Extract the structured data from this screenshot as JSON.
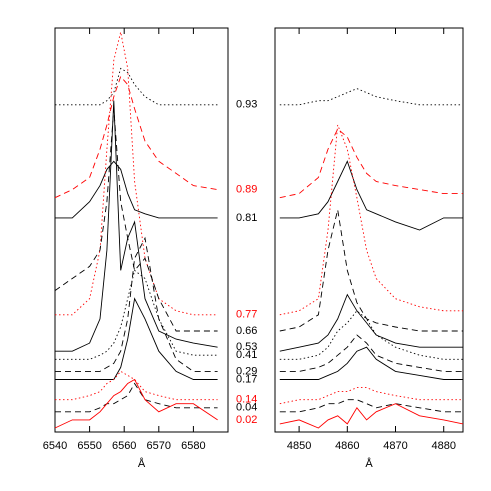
{
  "chart_data": [
    {
      "type": "line",
      "xlabel": "Å",
      "xlim": [
        6540,
        6590
      ],
      "xticks": [
        6540,
        6550,
        6560,
        6570,
        6580
      ],
      "ylim": [
        0,
        100
      ],
      "x": [
        6540,
        6545,
        6550,
        6553,
        6555,
        6557,
        6559,
        6561,
        6563,
        6566,
        6570,
        6575,
        6580,
        6587
      ],
      "series": [
        {
          "name": "0.93",
          "color": "#000000",
          "dash": "dotted",
          "values": [
            81,
            81,
            81,
            81,
            82,
            84,
            90,
            89,
            86,
            83,
            81,
            81,
            81,
            81
          ]
        },
        {
          "name": "0.89",
          "color": "#ff0000",
          "dash": "dashed",
          "values": [
            58,
            60,
            63,
            70,
            76,
            83,
            88,
            86,
            80,
            72,
            67,
            64,
            61,
            60
          ]
        },
        {
          "name": "0.81",
          "color": "#000000",
          "dash": "solid",
          "values": [
            53,
            53,
            57,
            61,
            65,
            67,
            65,
            59,
            55,
            54,
            53,
            53,
            53,
            53
          ]
        },
        {
          "name": "0.77",
          "color": "#ff0000",
          "dash": "dotted",
          "values": [
            29,
            29,
            33,
            45,
            70,
            92,
            99,
            90,
            62,
            43,
            33,
            30,
            29,
            29
          ]
        },
        {
          "name": "0.66",
          "color": "#000000",
          "dash": "dashed",
          "values": [
            35,
            38,
            41,
            45,
            57,
            80,
            57,
            48,
            40,
            43,
            33,
            25,
            25,
            25
          ]
        },
        {
          "name": "0.53",
          "color": "#000000",
          "dash": "solid",
          "values": [
            20,
            20,
            22,
            28,
            45,
            82,
            40,
            48,
            52,
            33,
            25,
            23,
            22,
            21
          ]
        },
        {
          "name": "0.41",
          "color": "#000000",
          "dash": "dotted",
          "values": [
            18,
            18,
            18,
            19,
            20,
            22,
            26,
            33,
            40,
            38,
            28,
            20,
            19,
            19
          ]
        },
        {
          "name": "0.29",
          "color": "#000000",
          "dash": "dashed",
          "values": [
            15,
            15,
            15,
            15,
            16,
            17,
            20,
            28,
            43,
            48,
            28,
            18,
            15,
            15
          ]
        },
        {
          "name": "0.17",
          "color": "#000000",
          "dash": "solid",
          "values": [
            13,
            13,
            13,
            13,
            13,
            13,
            16,
            23,
            33,
            28,
            20,
            15,
            13,
            13
          ]
        },
        {
          "name": "0.14",
          "color": "#ff0000",
          "dash": "dotted",
          "values": [
            8,
            8,
            9,
            10,
            12,
            13,
            15,
            14,
            13,
            10,
            9,
            8,
            8,
            8
          ]
        },
        {
          "name": "0.04",
          "color": "#000000",
          "dash": "dashed",
          "values": [
            5,
            5,
            5,
            6,
            7,
            7,
            8,
            9,
            12,
            8,
            7,
            6,
            6,
            6
          ]
        },
        {
          "name": "0.02",
          "color": "#ff0000",
          "dash": "solid",
          "values": [
            1,
            3,
            3,
            5,
            7,
            9,
            10,
            12,
            13,
            8,
            5,
            7,
            7,
            3
          ]
        }
      ]
    },
    {
      "type": "line",
      "xlabel": "Å",
      "xlim": [
        4845,
        4884
      ],
      "xticks": [
        4850,
        4860,
        4870,
        4880
      ],
      "ylim": [
        0,
        100
      ],
      "x": [
        4846,
        4850,
        4854,
        4856,
        4858,
        4860,
        4862,
        4864,
        4866,
        4870,
        4875,
        4880,
        4884
      ],
      "series": [
        {
          "color": "#000000",
          "dash": "dotted",
          "values": [
            81,
            81,
            82,
            82,
            83,
            84,
            85,
            84,
            83,
            82,
            81,
            81,
            81
          ]
        },
        {
          "color": "#ff0000",
          "dash": "dashed",
          "values": [
            58,
            59,
            63,
            70,
            75,
            73,
            68,
            64,
            62,
            61,
            60,
            59,
            59
          ]
        },
        {
          "color": "#000000",
          "dash": "solid",
          "values": [
            53,
            53,
            54,
            57,
            62,
            67,
            60,
            55,
            54,
            52,
            50,
            53,
            53
          ]
        },
        {
          "color": "#ff0000",
          "dash": "dotted",
          "values": [
            29,
            30,
            33,
            50,
            76,
            70,
            58,
            45,
            38,
            33,
            31,
            30,
            30
          ]
        },
        {
          "color": "#000000",
          "dash": "dashed",
          "values": [
            25,
            26,
            29,
            45,
            55,
            40,
            32,
            28,
            27,
            26,
            25,
            25,
            25
          ]
        },
        {
          "color": "#000000",
          "dash": "solid",
          "values": [
            20,
            21,
            22,
            24,
            28,
            34,
            30,
            27,
            24,
            22,
            21,
            21,
            21
          ]
        },
        {
          "color": "#000000",
          "dash": "dotted",
          "values": [
            18,
            18,
            19,
            21,
            25,
            27,
            30,
            28,
            24,
            21,
            19,
            18,
            18
          ]
        },
        {
          "color": "#000000",
          "dash": "dashed",
          "values": [
            15,
            15,
            16,
            17,
            19,
            21,
            24,
            22,
            19,
            17,
            16,
            15,
            15
          ]
        },
        {
          "color": "#000000",
          "dash": "solid",
          "values": [
            13,
            13,
            13,
            14,
            15,
            17,
            20,
            21,
            18,
            15,
            14,
            13,
            13
          ]
        },
        {
          "color": "#ff0000",
          "dash": "dotted",
          "values": [
            7,
            8,
            8,
            9,
            10,
            10,
            11,
            11,
            10,
            9,
            8,
            8,
            8
          ]
        },
        {
          "color": "#000000",
          "dash": "dashed",
          "values": [
            5,
            5,
            6,
            7,
            7,
            8,
            8,
            7,
            6,
            7,
            6,
            5,
            5
          ]
        },
        {
          "color": "#ff0000",
          "dash": "solid",
          "values": [
            2,
            3,
            1,
            3,
            4,
            2,
            6,
            3,
            5,
            7,
            4,
            3,
            2
          ]
        }
      ]
    }
  ]
}
